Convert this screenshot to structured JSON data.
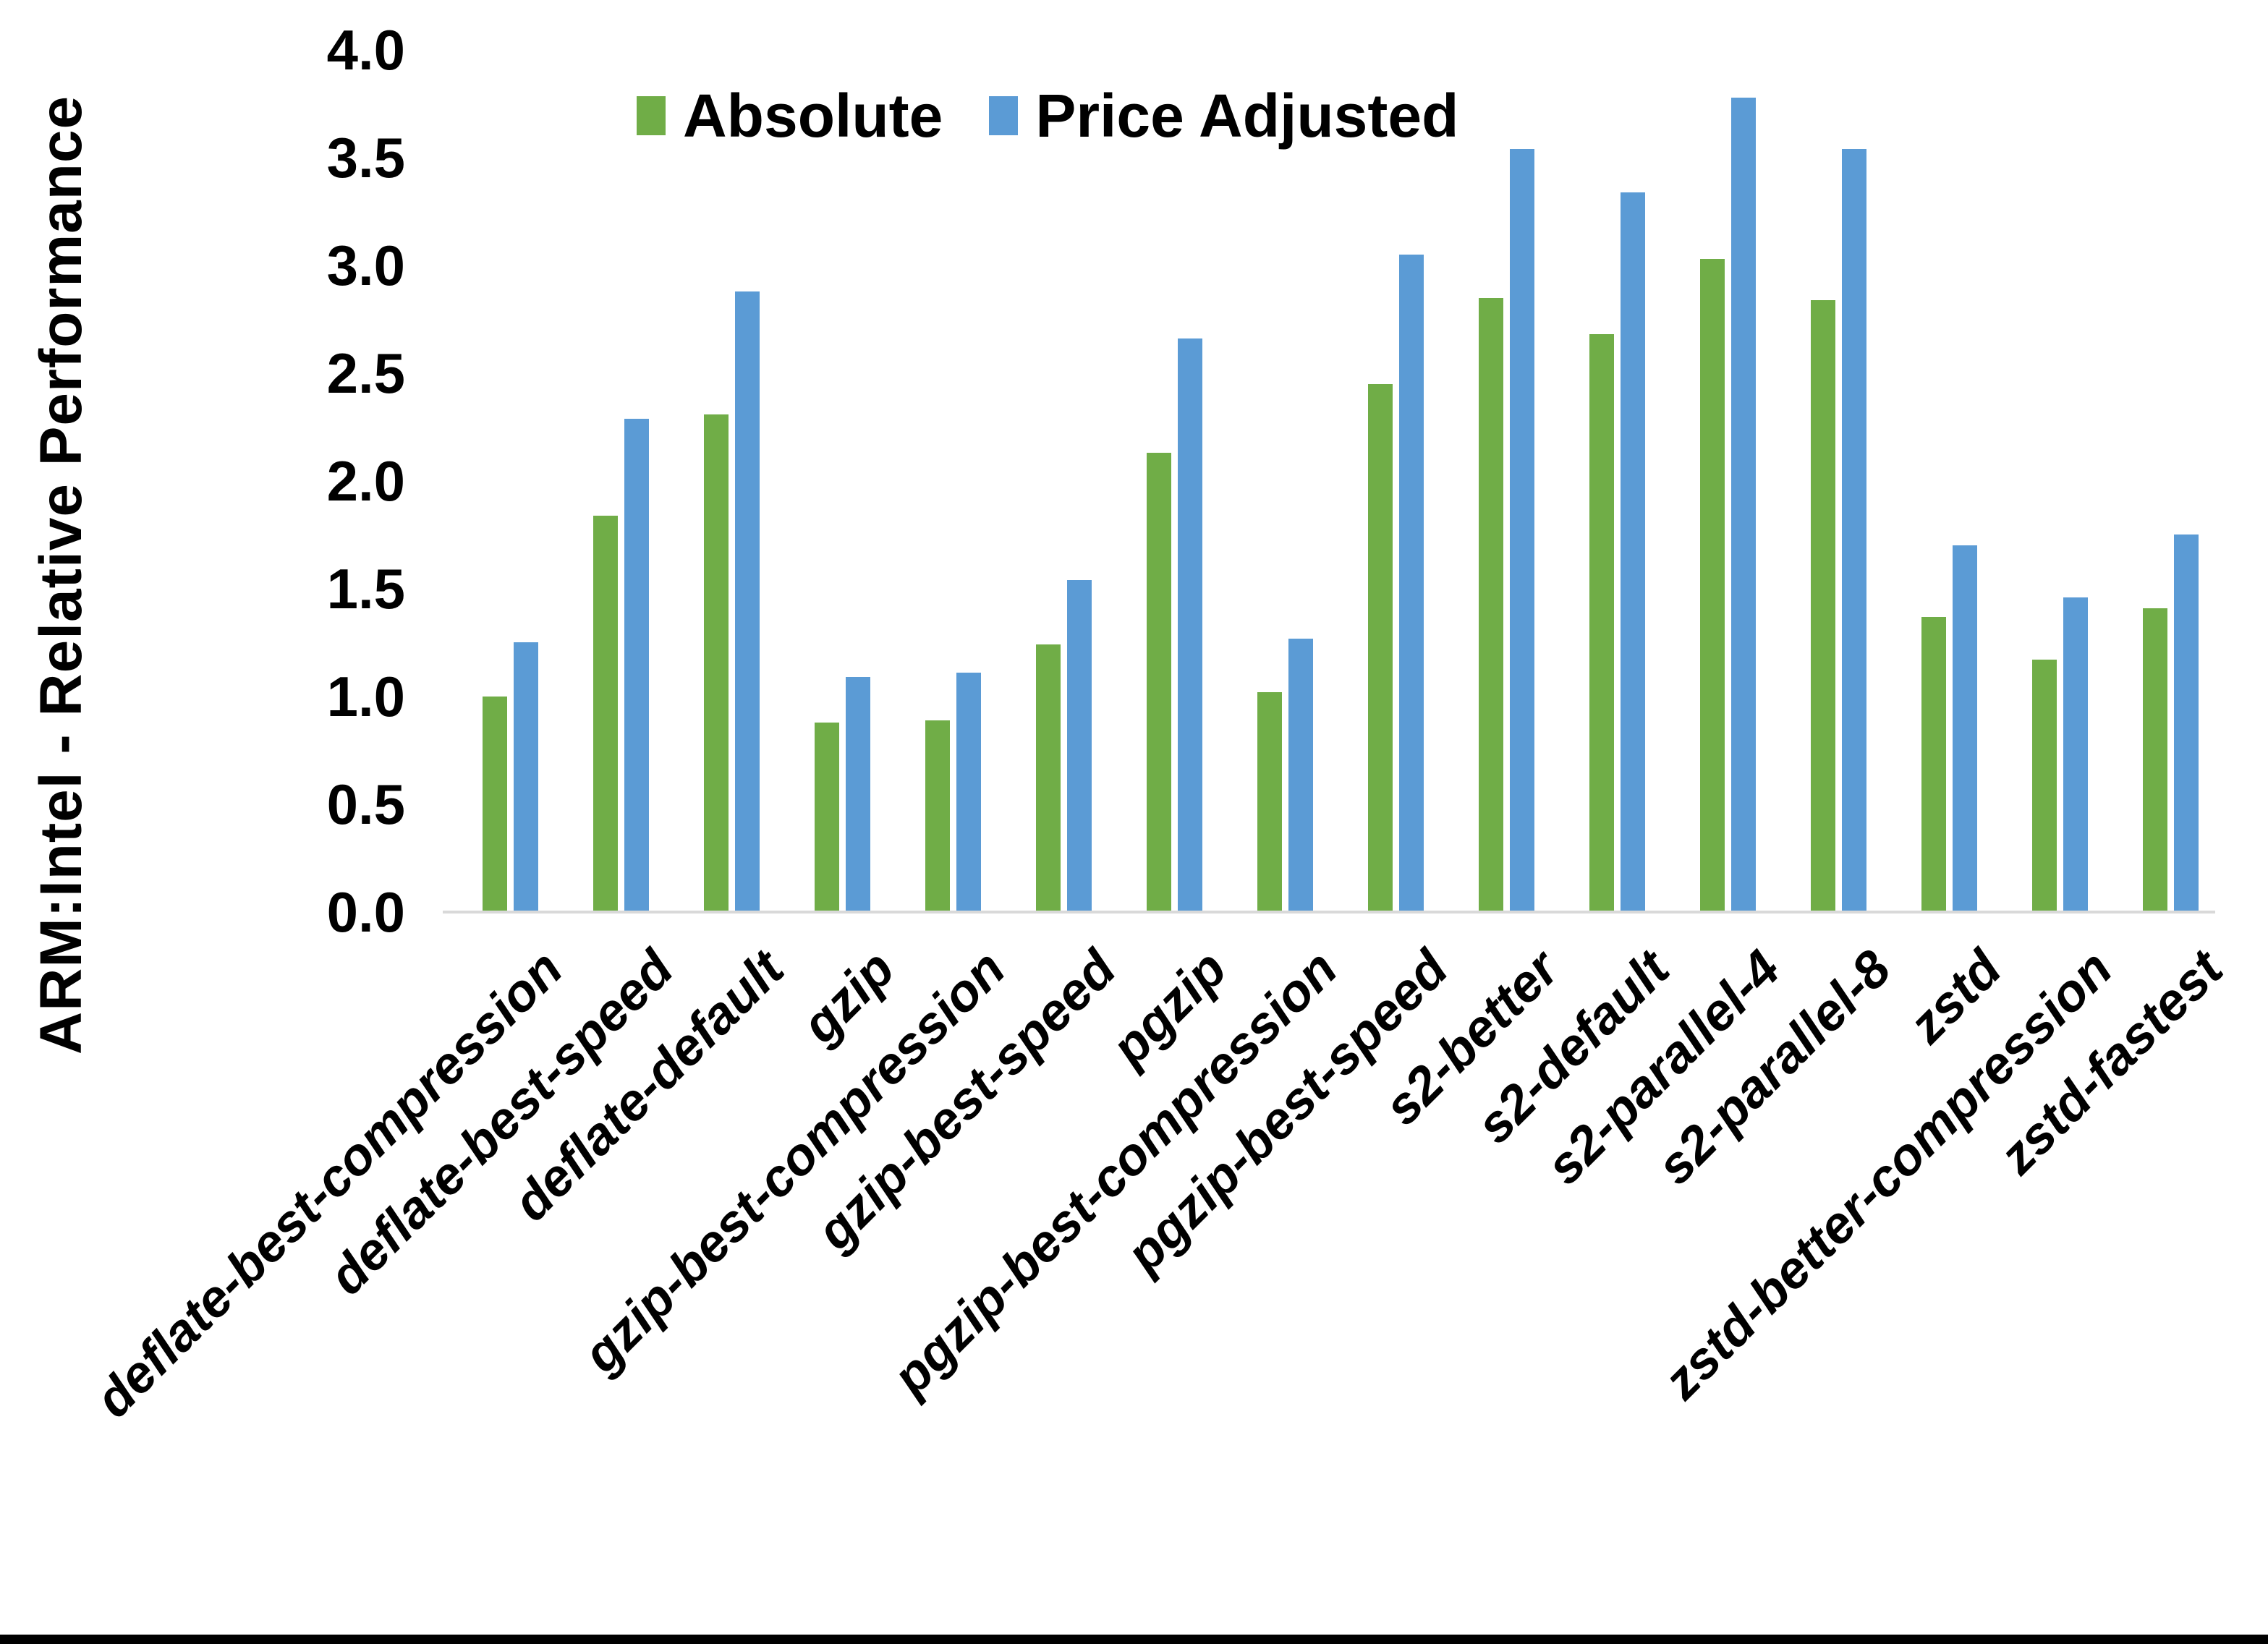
{
  "chart_data": {
    "type": "bar",
    "title": "",
    "xlabel": "",
    "ylabel": "ARM:Intel - Relative Performance",
    "ylim": [
      0.0,
      4.0
    ],
    "ytick_step": 0.5,
    "ytick_labels": [
      "0.0",
      "0.5",
      "1.0",
      "1.5",
      "2.0",
      "2.5",
      "3.0",
      "3.5",
      "4.0"
    ],
    "grid": false,
    "legend_position": "top-center",
    "categories": [
      "deflate-best-compression",
      "deflate-best-speed",
      "deflate-default",
      "gzip",
      "gzip-best-compression",
      "gzip-best-speed",
      "pgzip",
      "pgzip-best-compression",
      "pgzip-best-speed",
      "s2-better",
      "s2-default",
      "s2-parallel-4",
      "s2-parallel-8",
      "zstd",
      "zstd-better-compression",
      "zstd-fastest"
    ],
    "series": [
      {
        "name": "Absolute",
        "color": "#70AD47",
        "values": [
          1.0,
          1.84,
          2.31,
          0.88,
          0.89,
          1.24,
          2.13,
          1.02,
          2.45,
          2.85,
          2.68,
          3.03,
          2.84,
          1.37,
          1.17,
          1.41
        ]
      },
      {
        "name": "Price Adjusted",
        "color": "#5B9BD5",
        "values": [
          1.25,
          2.29,
          2.88,
          1.09,
          1.11,
          1.54,
          2.66,
          1.27,
          3.05,
          3.54,
          3.34,
          3.78,
          3.54,
          1.7,
          1.46,
          1.75
        ]
      }
    ],
    "axis_line_color": "#D9D9D9",
    "text_color": "#000000"
  }
}
